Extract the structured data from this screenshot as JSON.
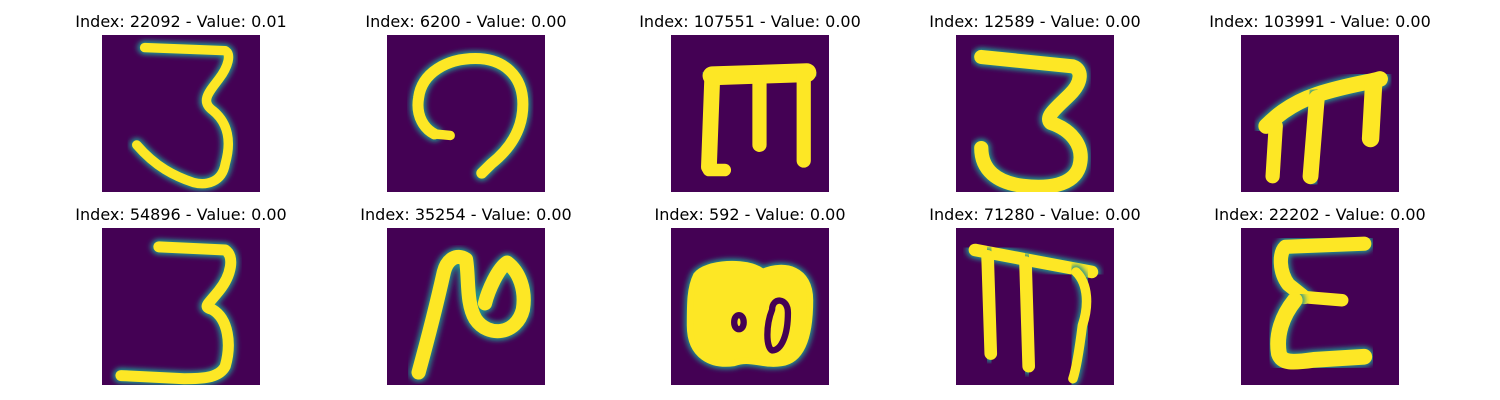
{
  "figure": {
    "background": "#ffffff"
  },
  "chart_data": {
    "type": "image_grid",
    "rows": 2,
    "cols": 5,
    "colormap": "viridis",
    "colors": {
      "low": "#440154",
      "mid": "#21908d",
      "high": "#fde725"
    },
    "axes_visible": false,
    "panels": [
      {
        "title": "Index: 22092 - Value: 0.01",
        "glyph": "digit-3-open"
      },
      {
        "title": "Index: 6200 - Value: 0.00",
        "glyph": "hook-curl"
      },
      {
        "title": "Index: 107551 - Value: 0.00",
        "glyph": "block-m"
      },
      {
        "title": "Index: 12589 - Value: 0.00",
        "glyph": "digit-3-round"
      },
      {
        "title": "Index: 103991 - Value: 0.00",
        "glyph": "slanted-m"
      },
      {
        "title": "Index: 54896 - Value: 0.00",
        "glyph": "digit-3-flat-base"
      },
      {
        "title": "Index: 35254 - Value: 0.00",
        "glyph": "slanted-n-loop"
      },
      {
        "title": "Index: 592 - Value: 0.00",
        "glyph": "blob-double-o"
      },
      {
        "title": "Index: 71280 - Value: 0.00",
        "glyph": "long-m"
      },
      {
        "title": "Index: 22202 - Value: 0.00",
        "glyph": "epsilon"
      }
    ]
  }
}
